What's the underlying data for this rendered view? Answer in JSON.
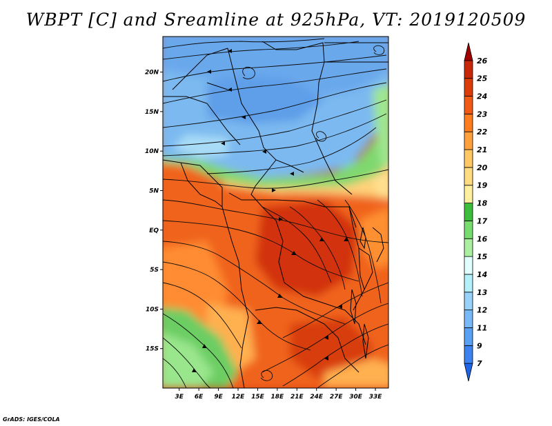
{
  "title": "WBPT [C] and Sreamline at 925hPa, VT: 2019120509",
  "credit": "GrADS: IGES/COLA",
  "map": {
    "lat_labels": [
      "20N",
      "15N",
      "10N",
      "5N",
      "EQ",
      "5S",
      "10S",
      "15S"
    ],
    "lat_values": [
      20,
      15,
      10,
      5,
      0,
      -5,
      -10,
      -15
    ],
    "lon_labels": [
      "3E",
      "6E",
      "9E",
      "12E",
      "15E",
      "18E",
      "21E",
      "24E",
      "27E",
      "30E",
      "33E"
    ],
    "lon_values": [
      3,
      6,
      9,
      12,
      15,
      18,
      21,
      24,
      27,
      30,
      33
    ],
    "lon_range": [
      0.5,
      35
    ],
    "lat_range": [
      -20,
      24.5
    ]
  },
  "colorbar": {
    "labels": [
      "7",
      "9",
      "11",
      "12",
      "13",
      "14",
      "15",
      "16",
      "17",
      "18",
      "19",
      "20",
      "21",
      "22",
      "23",
      "24",
      "25",
      "26"
    ],
    "colors": [
      "#1e64e6",
      "#3c82f0",
      "#5aa0f5",
      "#78b9fa",
      "#96d2fa",
      "#b4f0fa",
      "#e1ffff",
      "#aaf0a0",
      "#78dc6e",
      "#3cbe3c",
      "#fff0a0",
      "#ffdc82",
      "#ffc864",
      "#ffa03c",
      "#ff7d1e",
      "#f05a14",
      "#dc3c0a",
      "#c8280a",
      "#a00000"
    ]
  }
}
